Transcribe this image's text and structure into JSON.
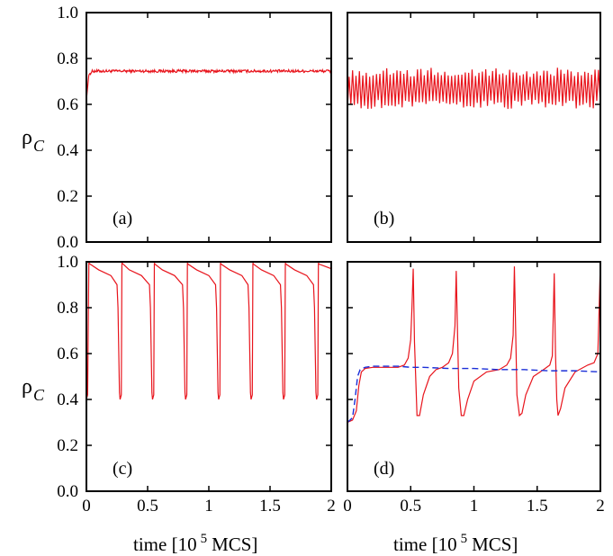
{
  "colors": {
    "red": "#e8141c",
    "blue": "#1b2fd8",
    "axis": "#000000"
  },
  "axis_text": {
    "y_label_main": "ρ",
    "y_label_sub": "C",
    "x_label_pre": "time [10",
    "x_label_sup": "5",
    "x_label_post": "MCS]"
  },
  "chart_data": [
    {
      "type": "line",
      "panel": "(a)",
      "xlim": [
        0,
        2
      ],
      "ylim": [
        0,
        1
      ],
      "yticks": [
        "0.0",
        "0.2",
        "0.4",
        "0.6",
        "0.8",
        "1.0"
      ],
      "xticks": [],
      "ylabel": "ρC",
      "series": [
        {
          "color": "red",
          "style": "solid",
          "x": [
            0,
            0.02,
            0.05,
            0.2,
            0.5,
            1.0,
            1.5,
            2.0
          ],
          "y": [
            0.62,
            0.73,
            0.745,
            0.745,
            0.745,
            0.745,
            0.745,
            0.745
          ],
          "noise": 0.006
        }
      ]
    },
    {
      "type": "line",
      "panel": "(b)",
      "xlim": [
        0,
        2
      ],
      "ylim": [
        0,
        1
      ],
      "yticks": [],
      "xticks": [],
      "series": [
        {
          "color": "red",
          "style": "oscillation",
          "x_start": 0,
          "x_end": 2,
          "period": 0.027,
          "low": 0.6,
          "high": 0.74,
          "jitter": 0.02
        }
      ]
    },
    {
      "type": "line",
      "panel": "(c)",
      "xlim": [
        0,
        2
      ],
      "ylim": [
        0,
        1
      ],
      "yticks": [
        "0.0",
        "0.2",
        "0.4",
        "0.6",
        "0.8",
        "1.0"
      ],
      "xticks": [
        "0",
        "0.5",
        "1",
        "1.5",
        "2"
      ],
      "xlabel": "time [10 5 MCS]",
      "ylabel": "ρC",
      "series": [
        {
          "color": "red",
          "style": "solid",
          "x": [
            0,
            0.01,
            0.013,
            0.02,
            0.03,
            0.1,
            0.2,
            0.25,
            0.258,
            0.27,
            0.275,
            0.285,
            0.29,
            0.3,
            0.35,
            0.45,
            0.515,
            0.523,
            0.535,
            0.54,
            0.55,
            0.555,
            0.56,
            0.62,
            0.72,
            0.785,
            0.793,
            0.805,
            0.81,
            0.82,
            0.825,
            0.83,
            0.9,
            1.0,
            1.055,
            1.063,
            1.075,
            1.08,
            1.09,
            1.095,
            1.1,
            1.17,
            1.27,
            1.32,
            1.328,
            1.34,
            1.345,
            1.355,
            1.36,
            1.365,
            1.43,
            1.53,
            1.585,
            1.593,
            1.605,
            1.61,
            1.62,
            1.625,
            1.63,
            1.7,
            1.8,
            1.855,
            1.863,
            1.875,
            1.88,
            1.89,
            1.895,
            1.9,
            1.95,
            2.0
          ],
          "y": [
            0.4,
            0.42,
            0.6,
            0.995,
            0.99,
            0.965,
            0.94,
            0.9,
            0.8,
            0.43,
            0.4,
            0.42,
            0.995,
            0.99,
            0.965,
            0.94,
            0.9,
            0.8,
            0.43,
            0.4,
            0.42,
            0.995,
            0.99,
            0.965,
            0.94,
            0.9,
            0.8,
            0.43,
            0.4,
            0.42,
            0.995,
            0.99,
            0.965,
            0.94,
            0.9,
            0.8,
            0.43,
            0.4,
            0.42,
            0.995,
            0.99,
            0.965,
            0.94,
            0.9,
            0.8,
            0.43,
            0.4,
            0.42,
            0.995,
            0.99,
            0.965,
            0.94,
            0.9,
            0.8,
            0.43,
            0.4,
            0.42,
            0.995,
            0.99,
            0.965,
            0.94,
            0.9,
            0.8,
            0.43,
            0.4,
            0.42,
            0.995,
            0.99,
            0.98,
            0.97
          ]
        }
      ]
    },
    {
      "type": "line",
      "panel": "(d)",
      "xlim": [
        0,
        2
      ],
      "ylim": [
        0,
        1
      ],
      "yticks": [],
      "xticks": [
        "0",
        "0.5",
        "1",
        "1.5",
        "2"
      ],
      "xlabel": "time [10 5 MCS]",
      "series": [
        {
          "color": "red",
          "style": "solid",
          "x": [
            0,
            0.04,
            0.07,
            0.09,
            0.11,
            0.14,
            0.2,
            0.3,
            0.4,
            0.45,
            0.48,
            0.5,
            0.51,
            0.52,
            0.53,
            0.55,
            0.57,
            0.6,
            0.65,
            0.7,
            0.75,
            0.8,
            0.83,
            0.85,
            0.86,
            0.87,
            0.88,
            0.9,
            0.92,
            0.95,
            1.0,
            1.1,
            1.2,
            1.26,
            1.29,
            1.31,
            1.32,
            1.33,
            1.34,
            1.36,
            1.38,
            1.41,
            1.47,
            1.55,
            1.6,
            1.62,
            1.635,
            1.645,
            1.655,
            1.665,
            1.685,
            1.72,
            1.8,
            1.9,
            1.95,
            1.98,
            1.99,
            2.0
          ],
          "y": [
            0.3,
            0.31,
            0.35,
            0.46,
            0.52,
            0.535,
            0.54,
            0.54,
            0.54,
            0.55,
            0.58,
            0.66,
            0.8,
            0.97,
            0.65,
            0.33,
            0.33,
            0.42,
            0.5,
            0.53,
            0.54,
            0.56,
            0.6,
            0.72,
            0.96,
            0.7,
            0.45,
            0.33,
            0.33,
            0.4,
            0.48,
            0.52,
            0.53,
            0.55,
            0.58,
            0.68,
            0.98,
            0.7,
            0.42,
            0.33,
            0.34,
            0.42,
            0.5,
            0.53,
            0.55,
            0.59,
            0.95,
            0.6,
            0.4,
            0.33,
            0.36,
            0.45,
            0.52,
            0.55,
            0.56,
            0.6,
            0.8,
            1.0
          ]
        },
        {
          "color": "blue",
          "style": "dashed",
          "x": [
            0,
            0.04,
            0.06,
            0.08,
            0.1,
            0.14,
            0.2,
            0.3,
            0.4,
            0.5,
            0.6,
            0.8,
            1.0,
            1.2,
            1.4,
            1.6,
            1.8,
            2.0
          ],
          "y": [
            0.3,
            0.32,
            0.4,
            0.5,
            0.53,
            0.54,
            0.545,
            0.545,
            0.545,
            0.54,
            0.54,
            0.535,
            0.535,
            0.53,
            0.53,
            0.525,
            0.525,
            0.52
          ]
        }
      ]
    }
  ]
}
